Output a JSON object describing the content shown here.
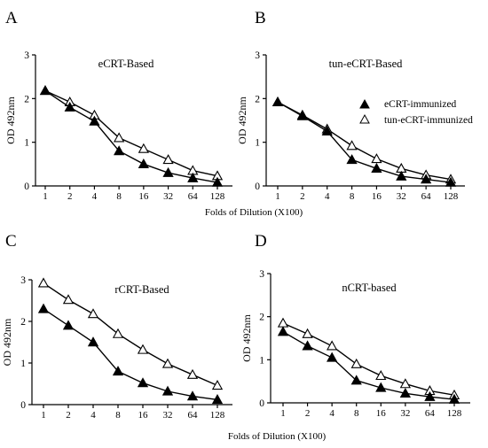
{
  "figure": {
    "panel_letters": [
      "A",
      "B",
      "C",
      "D"
    ],
    "xlabel_top": "Folds of Dilution (X100)",
    "xlabel_bottom": "Folds of Dilution (X100)",
    "legend": {
      "filled_label": "eCRT-immunized",
      "open_label": "tun-eCRT-immunized"
    }
  },
  "chart_data": [
    {
      "type": "line",
      "panel": "A",
      "title": "eCRT-Based",
      "ylabel": "OD 492nm",
      "categories": [
        "1",
        "2",
        "4",
        "8",
        "16",
        "32",
        "64",
        "128"
      ],
      "yticks": [
        "0",
        "1",
        "2",
        "3"
      ],
      "ylim": [
        0,
        3
      ],
      "series": [
        {
          "name": "eCRT-immunized",
          "marker": "filled-triangle",
          "values": [
            2.18,
            1.8,
            1.48,
            0.8,
            0.5,
            0.3,
            0.18,
            0.08
          ]
        },
        {
          "name": "tun-eCRT-immunized",
          "marker": "open-triangle",
          "values": [
            2.18,
            1.92,
            1.62,
            1.1,
            0.85,
            0.6,
            0.35,
            0.23
          ]
        }
      ]
    },
    {
      "type": "line",
      "panel": "B",
      "title": "tun-eCRT-Based",
      "ylabel": "OD 492nm",
      "categories": [
        "1",
        "2",
        "4",
        "8",
        "16",
        "32",
        "64",
        "128"
      ],
      "yticks": [
        "0",
        "1",
        "2",
        "3"
      ],
      "ylim": [
        0,
        3
      ],
      "series": [
        {
          "name": "eCRT-immunized",
          "marker": "filled-triangle",
          "values": [
            1.92,
            1.6,
            1.25,
            0.6,
            0.4,
            0.22,
            0.15,
            0.08
          ]
        },
        {
          "name": "tun-eCRT-immunized",
          "marker": "open-triangle",
          "values": [
            1.92,
            1.62,
            1.3,
            0.92,
            0.62,
            0.4,
            0.25,
            0.15
          ]
        }
      ]
    },
    {
      "type": "line",
      "panel": "C",
      "title": "rCRT-Based",
      "ylabel": "OD 492nm",
      "categories": [
        "1",
        "2",
        "4",
        "8",
        "16",
        "32",
        "64",
        "128"
      ],
      "yticks": [
        "0",
        "1",
        "2",
        "3"
      ],
      "ylim": [
        0,
        3
      ],
      "series": [
        {
          "name": "eCRT-immunized",
          "marker": "filled-triangle",
          "values": [
            2.3,
            1.9,
            1.5,
            0.8,
            0.52,
            0.32,
            0.2,
            0.12
          ]
        },
        {
          "name": "tun-eCRT-immunized",
          "marker": "open-triangle",
          "values": [
            2.92,
            2.52,
            2.18,
            1.7,
            1.32,
            0.98,
            0.72,
            0.46
          ]
        }
      ]
    },
    {
      "type": "line",
      "panel": "D",
      "title": "nCRT-based",
      "ylabel": "OD 492nm",
      "categories": [
        "1",
        "2",
        "4",
        "8",
        "16",
        "32",
        "64",
        "128"
      ],
      "yticks": [
        "0",
        "1",
        "2",
        "3"
      ],
      "ylim": [
        0,
        3
      ],
      "series": [
        {
          "name": "eCRT-immunized",
          "marker": "filled-triangle",
          "values": [
            1.65,
            1.32,
            1.05,
            0.52,
            0.35,
            0.22,
            0.14,
            0.08
          ]
        },
        {
          "name": "tun-eCRT-immunized",
          "marker": "open-triangle",
          "values": [
            1.85,
            1.6,
            1.32,
            0.9,
            0.63,
            0.44,
            0.28,
            0.18
          ]
        }
      ]
    }
  ]
}
